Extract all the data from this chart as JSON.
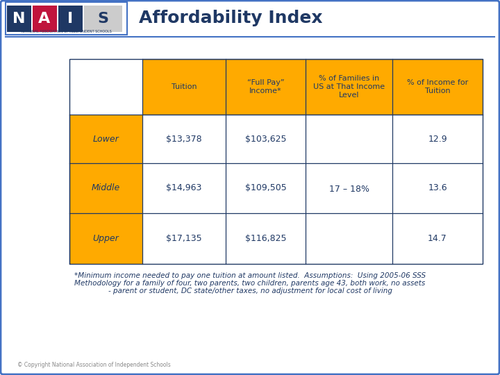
{
  "title": "Affordability Index",
  "title_color": "#1F3864",
  "title_fontsize": 18,
  "bg_color": "#FFFFFF",
  "border_color": "#4472C4",
  "orange_color": "#FFAA00",
  "white_cell": "#FFFFFF",
  "header_labels": [
    "Tuition",
    "“Full Pay”\nIncome*",
    "% of Families in\nUS at That Income\nLevel",
    "% of Income for\nTuition"
  ],
  "row_labels": [
    "Lower",
    "Middle",
    "Upper"
  ],
  "tuition": [
    "$13,378",
    "$14,963",
    "$17,135"
  ],
  "full_pay": [
    "$103,625",
    "$109,505",
    "$116,825"
  ],
  "families_pct_merged": "17 – 18%",
  "income_pct": [
    "12.9",
    "13.6",
    "14.7"
  ],
  "footnote_line1": "*Minimum income needed to pay one tuition at amount listed.  Assumptions:  Using 2005-06 SSS",
  "footnote_line2": "Methodology for a family of four, two parents, two children, parents age 43, both work, no assets",
  "footnote_line3": "- parent or student, DC state/other taxes, no adjustment for local cost of living",
  "copyright": "© Copyright National Association of Independent Schools",
  "text_color_dark": "#1F3864",
  "footnote_fontsize": 7.5,
  "cell_fontsize": 9,
  "header_fontsize": 8
}
